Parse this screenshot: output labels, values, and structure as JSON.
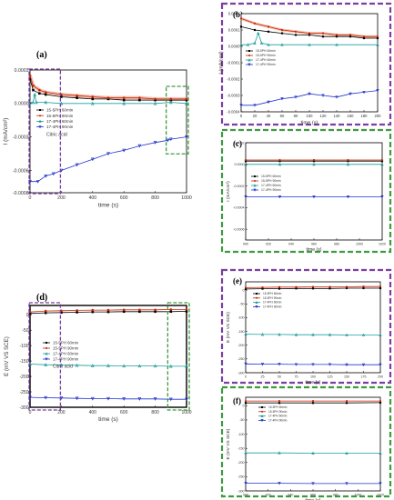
{
  "chart_data": [
    {
      "panel": "(a)",
      "type": "line",
      "ylabel": "I (mA/cm²)",
      "xlabel": "time (s)",
      "xlim": [
        0,
        1000
      ],
      "ylim": [
        -0.0008,
        0.0003
      ],
      "xticks": [
        "0",
        "200",
        "400",
        "600",
        "800",
        "1000"
      ],
      "yticks": [
        "0.0003",
        "0.0000",
        "-0.0003",
        "-0.0006",
        "-0.0008"
      ],
      "legend_position": "center",
      "legend_note": "Citric acid",
      "series": [
        {
          "name": "15-5PH 60min",
          "color": "#000000",
          "marker": "square",
          "x": [
            0,
            20,
            60,
            100,
            200,
            300,
            400,
            500,
            600,
            700,
            800,
            900,
            1000
          ],
          "values": [
            0.00022,
            0.00012,
            9e-05,
            8e-05,
            6e-05,
            5e-05,
            4e-05,
            4e-05,
            3e-05,
            3e-05,
            3e-05,
            3e-05,
            3e-05
          ]
        },
        {
          "name": "15-5PH 90min",
          "color": "#cc2200",
          "marker": "circle",
          "x": [
            0,
            20,
            60,
            100,
            200,
            300,
            400,
            500,
            600,
            700,
            800,
            900,
            1000
          ],
          "values": [
            0.00025,
            0.00016,
            0.00012,
            0.0001,
            8e-05,
            7e-05,
            6e-05,
            5e-05,
            5e-05,
            5e-05,
            4e-05,
            4e-05,
            4e-05
          ]
        },
        {
          "name": "17-4PH 60min",
          "color": "#1a9d9d",
          "marker": "triangle",
          "x": [
            0,
            20,
            30,
            40,
            100,
            200,
            400,
            600,
            800,
            900,
            1000
          ],
          "values": [
            1e-05,
            1e-05,
            8e-05,
            1e-05,
            1e-05,
            0.0,
            0.0,
            0.0,
            0.0,
            1e-05,
            0.0
          ]
        },
        {
          "name": "17-4PH 90min",
          "color": "#2233cc",
          "marker": "triangle-down",
          "x": [
            0,
            50,
            100,
            150,
            200,
            300,
            400,
            500,
            600,
            700,
            800,
            880,
            900,
            1000
          ],
          "values": [
            -0.0007,
            -0.0007,
            -0.00065,
            -0.00063,
            -0.0006,
            -0.00055,
            -0.0005,
            -0.00045,
            -0.00042,
            -0.00038,
            -0.00035,
            -0.00033,
            -0.00032,
            -0.0003
          ]
        }
      ]
    },
    {
      "panel": "(b)",
      "type": "line",
      "ylabel": "I (mA/cm²)",
      "xlabel": "time (s)",
      "xlim": [
        0,
        200
      ],
      "ylim": [
        -0.0004,
        0.0002
      ],
      "xticks": [
        "0",
        "20",
        "40",
        "60",
        "80",
        "100",
        "120",
        "140",
        "160",
        "180",
        "200"
      ],
      "yticks": [
        "0.0002",
        "0.0001",
        "0.0000",
        "-0.0001",
        "-0.0002",
        "-0.0003",
        "-0.0004"
      ],
      "legend_position": "center-left",
      "series": [
        {
          "name": "15-5PH 60min",
          "x": [
            0,
            20,
            40,
            60,
            80,
            100,
            120,
            140,
            160,
            180,
            200
          ],
          "values": [
            0.00012,
            0.0001,
            9e-05,
            8e-05,
            7e-05,
            7e-05,
            6e-05,
            6e-05,
            6e-05,
            5e-05,
            5e-05
          ]
        },
        {
          "name": "15-5PH 90min",
          "x": [
            0,
            20,
            40,
            60,
            80,
            100,
            120,
            140,
            160,
            180,
            200
          ],
          "values": [
            0.00017,
            0.00014,
            0.00012,
            0.0001,
            9e-05,
            8e-05,
            8e-05,
            7e-05,
            7e-05,
            6e-05,
            6e-05
          ]
        },
        {
          "name": "17-4PH 60min",
          "x": [
            0,
            10,
            20,
            25,
            30,
            40,
            60,
            100,
            140,
            200
          ],
          "values": [
            1e-05,
            1e-05,
            2e-05,
            8e-05,
            2e-05,
            1e-05,
            1e-05,
            1e-05,
            1e-05,
            1e-05
          ]
        },
        {
          "name": "17-4PH 90min",
          "x": [
            0,
            20,
            40,
            60,
            80,
            100,
            120,
            140,
            160,
            180,
            200
          ],
          "values": [
            -0.00036,
            -0.00036,
            -0.00034,
            -0.00032,
            -0.00031,
            -0.00029,
            -0.0003,
            -0.00031,
            -0.00029,
            -0.00028,
            -0.00027
          ]
        }
      ]
    },
    {
      "panel": "(c)",
      "type": "line",
      "ylabel": "I (mA/cm²)",
      "xlabel": "time (s)",
      "xlim": [
        900,
        1020
      ],
      "ylim": [
        -0.0007,
        0.0002
      ],
      "xticks": [
        "900",
        "920",
        "940",
        "960",
        "980",
        "1000",
        "1020"
      ],
      "yticks": [
        "0.0002",
        "0.0000",
        "-0.0002",
        "-0.0004",
        "-0.0006"
      ],
      "legend_position": "left",
      "series": [
        {
          "name": "15-5PH 60min",
          "x": [
            900,
            930,
            960,
            990,
            1020
          ],
          "values": [
            3e-05,
            3e-05,
            3e-05,
            3e-05,
            3e-05
          ]
        },
        {
          "name": "15-5PH 90min",
          "x": [
            900,
            930,
            960,
            990,
            1020
          ],
          "values": [
            4e-05,
            4e-05,
            4e-05,
            4e-05,
            4e-05
          ]
        },
        {
          "name": "17-4PH 60min",
          "x": [
            900,
            930,
            960,
            990,
            1020
          ],
          "values": [
            0.0,
            0.0,
            0.0,
            0.0,
            0.0
          ]
        },
        {
          "name": "17-4PH 90min",
          "x": [
            900,
            930,
            960,
            990,
            1020
          ],
          "values": [
            -0.0003,
            -0.0003,
            -0.0003,
            -0.0003,
            -0.0003
          ]
        }
      ]
    },
    {
      "panel": "(d)",
      "type": "line",
      "ylabel": "E (mV VS SCE)",
      "xlabel": "time (s)",
      "xlim": [
        0,
        1000
      ],
      "ylim": [
        -300,
        30
      ],
      "xticks": [
        "0",
        "200",
        "400",
        "600",
        "800",
        "1000"
      ],
      "yticks": [
        "0",
        "-50",
        "-100",
        "-150",
        "-200",
        "-250",
        "-300"
      ],
      "legend_position": "center",
      "legend_note": "Citric acid",
      "series": [
        {
          "name": "15-5PH 60min",
          "x": [
            0,
            100,
            200,
            300,
            400,
            500,
            600,
            700,
            800,
            900,
            1000
          ],
          "values": [
            4,
            6,
            7,
            8,
            9,
            9,
            10,
            10,
            10,
            10,
            11
          ]
        },
        {
          "name": "15-5PH 90min",
          "x": [
            0,
            100,
            200,
            300,
            400,
            500,
            600,
            700,
            800,
            900,
            1000
          ],
          "values": [
            9,
            12,
            13,
            14,
            15,
            15,
            16,
            16,
            16,
            17,
            17
          ]
        },
        {
          "name": "17-4PH 60min",
          "x": [
            0,
            100,
            200,
            300,
            400,
            500,
            600,
            700,
            800,
            900,
            1000
          ],
          "values": [
            -160,
            -162,
            -163,
            -164,
            -165,
            -165,
            -166,
            -166,
            -166,
            -167,
            -167
          ]
        },
        {
          "name": "17-4PH 90min",
          "x": [
            0,
            100,
            200,
            300,
            400,
            500,
            600,
            700,
            800,
            900,
            1000
          ],
          "values": [
            -268,
            -269,
            -270,
            -271,
            -272,
            -272,
            -273,
            -273,
            -273,
            -274,
            -274
          ]
        }
      ]
    },
    {
      "panel": "(e)",
      "type": "line",
      "ylabel": "E (mV VS SCE)",
      "xlabel": "time (s)",
      "xlim": [
        0,
        200
      ],
      "ylim": [
        -300,
        30
      ],
      "xticks": [
        "0",
        "25",
        "50",
        "75",
        "100",
        "125",
        "150",
        "175",
        "200"
      ],
      "yticks": [
        "0",
        "-50",
        "-100",
        "-150",
        "-200",
        "-250",
        "-300"
      ],
      "legend_position": "top-left",
      "series": [
        {
          "name": "15-5PH 60min",
          "x": [
            0,
            25,
            50,
            75,
            100,
            125,
            150,
            175,
            200
          ],
          "values": [
            4,
            5,
            5,
            6,
            6,
            6,
            7,
            7,
            7
          ]
        },
        {
          "name": "15-5PH 90min",
          "x": [
            0,
            25,
            50,
            75,
            100,
            125,
            150,
            175,
            200
          ],
          "values": [
            9,
            10,
            11,
            11,
            12,
            12,
            12,
            13,
            13
          ]
        },
        {
          "name": "17-4PH 60min",
          "x": [
            0,
            25,
            50,
            75,
            100,
            125,
            150,
            175,
            200
          ],
          "values": [
            -160,
            -161,
            -161,
            -162,
            -162,
            -162,
            -163,
            -163,
            -163
          ]
        },
        {
          "name": "17-4PH 90min",
          "x": [
            0,
            25,
            50,
            75,
            100,
            125,
            150,
            175,
            200
          ],
          "values": [
            -268,
            -269,
            -269,
            -270,
            -270,
            -270,
            -271,
            -271,
            -271
          ]
        }
      ]
    },
    {
      "panel": "(f)",
      "type": "line",
      "ylabel": "E (mV VS SCE)",
      "xlabel": "time (s)",
      "xlim": [
        900,
        1020
      ],
      "ylim": [
        -300,
        30
      ],
      "xticks": [
        "900",
        "920",
        "940",
        "960",
        "980",
        "1000",
        "1020"
      ],
      "yticks": [
        "0",
        "-50",
        "-100",
        "-150",
        "-200",
        "-250",
        "-300"
      ],
      "legend_position": "top-left",
      "series": [
        {
          "name": "15-5PH 60min",
          "x": [
            900,
            930,
            960,
            990,
            1020
          ],
          "values": [
            10,
            10,
            10,
            10,
            11
          ]
        },
        {
          "name": "15-5PH 90min",
          "x": [
            900,
            930,
            960,
            990,
            1020
          ],
          "values": [
            17,
            17,
            17,
            17,
            17
          ]
        },
        {
          "name": "17-4PH 60min",
          "x": [
            900,
            930,
            960,
            990,
            1020
          ],
          "values": [
            -166,
            -166,
            -167,
            -167,
            -167
          ]
        },
        {
          "name": "17-4PH 90min",
          "x": [
            900,
            930,
            960,
            990,
            1020
          ],
          "values": [
            -273,
            -273,
            -274,
            -274,
            -274
          ]
        }
      ]
    }
  ],
  "colors": {
    "series": [
      "#000000",
      "#cc2200",
      "#1a9d9d",
      "#2233cc"
    ],
    "red_band": "#e07a5a",
    "purple_frame": "#7b3fa0",
    "green_frame": "#3f9a3f"
  }
}
